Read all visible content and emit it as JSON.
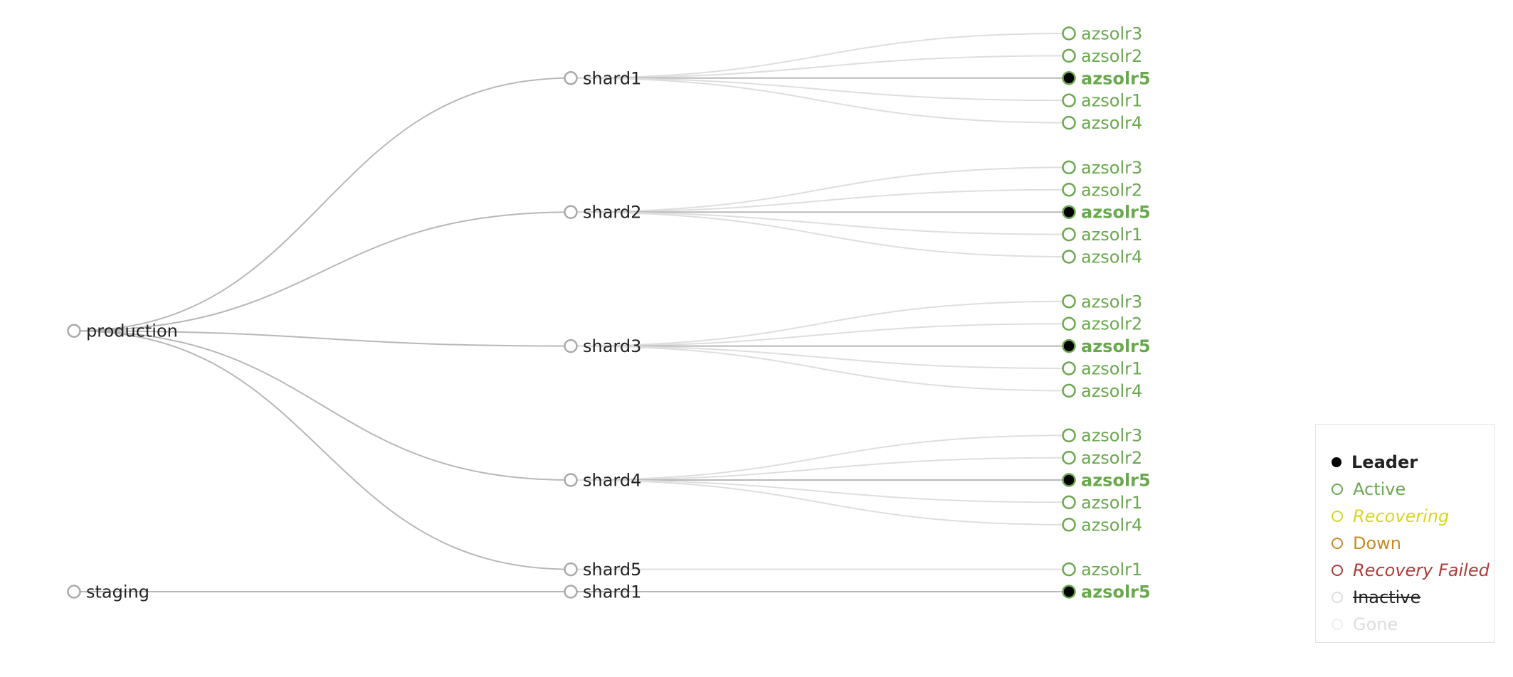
{
  "colors": {
    "active": "#6aa84f",
    "leader_fill": "#000000",
    "recovering": "#d6d623",
    "down": "#c58a2a",
    "recovery_failed": "#b03a3a",
    "inactive": "#dcdcdc",
    "gone": "#eeeeee",
    "link_parent": "#b8b8b8",
    "link_replica": "#dedede",
    "node_default": "#aaaaaa",
    "text_default": "#222222"
  },
  "collections": [
    {
      "name": "production",
      "shards": [
        {
          "name": "shard1",
          "replicas": [
            {
              "name": "azsolr3",
              "state": "active",
              "leader": false
            },
            {
              "name": "azsolr2",
              "state": "active",
              "leader": false
            },
            {
              "name": "azsolr5",
              "state": "active",
              "leader": true
            },
            {
              "name": "azsolr1",
              "state": "active",
              "leader": false
            },
            {
              "name": "azsolr4",
              "state": "active",
              "leader": false
            }
          ]
        },
        {
          "name": "shard2",
          "replicas": [
            {
              "name": "azsolr3",
              "state": "active",
              "leader": false
            },
            {
              "name": "azsolr2",
              "state": "active",
              "leader": false
            },
            {
              "name": "azsolr5",
              "state": "active",
              "leader": true
            },
            {
              "name": "azsolr1",
              "state": "active",
              "leader": false
            },
            {
              "name": "azsolr4",
              "state": "active",
              "leader": false
            }
          ]
        },
        {
          "name": "shard3",
          "replicas": [
            {
              "name": "azsolr3",
              "state": "active",
              "leader": false
            },
            {
              "name": "azsolr2",
              "state": "active",
              "leader": false
            },
            {
              "name": "azsolr5",
              "state": "active",
              "leader": true
            },
            {
              "name": "azsolr1",
              "state": "active",
              "leader": false
            },
            {
              "name": "azsolr4",
              "state": "active",
              "leader": false
            }
          ]
        },
        {
          "name": "shard4",
          "replicas": [
            {
              "name": "azsolr3",
              "state": "active",
              "leader": false
            },
            {
              "name": "azsolr2",
              "state": "active",
              "leader": false
            },
            {
              "name": "azsolr5",
              "state": "active",
              "leader": true
            },
            {
              "name": "azsolr1",
              "state": "active",
              "leader": false
            },
            {
              "name": "azsolr4",
              "state": "active",
              "leader": false
            }
          ]
        },
        {
          "name": "shard5",
          "replicas": [
            {
              "name": "azsolr1",
              "state": "active",
              "leader": false
            }
          ]
        }
      ]
    },
    {
      "name": "staging",
      "shards": [
        {
          "name": "shard1",
          "replicas": [
            {
              "name": "azsolr5",
              "state": "active",
              "leader": true
            }
          ]
        }
      ]
    }
  ],
  "legend": {
    "items": [
      {
        "label": "Leader",
        "key": "leader"
      },
      {
        "label": "Active",
        "key": "active"
      },
      {
        "label": "Recovering",
        "key": "recovering"
      },
      {
        "label": "Down",
        "key": "down"
      },
      {
        "label": "Recovery Failed",
        "key": "recovery_failed"
      },
      {
        "label": "Inactive",
        "key": "inactive"
      },
      {
        "label": "Gone",
        "key": "gone"
      }
    ]
  }
}
